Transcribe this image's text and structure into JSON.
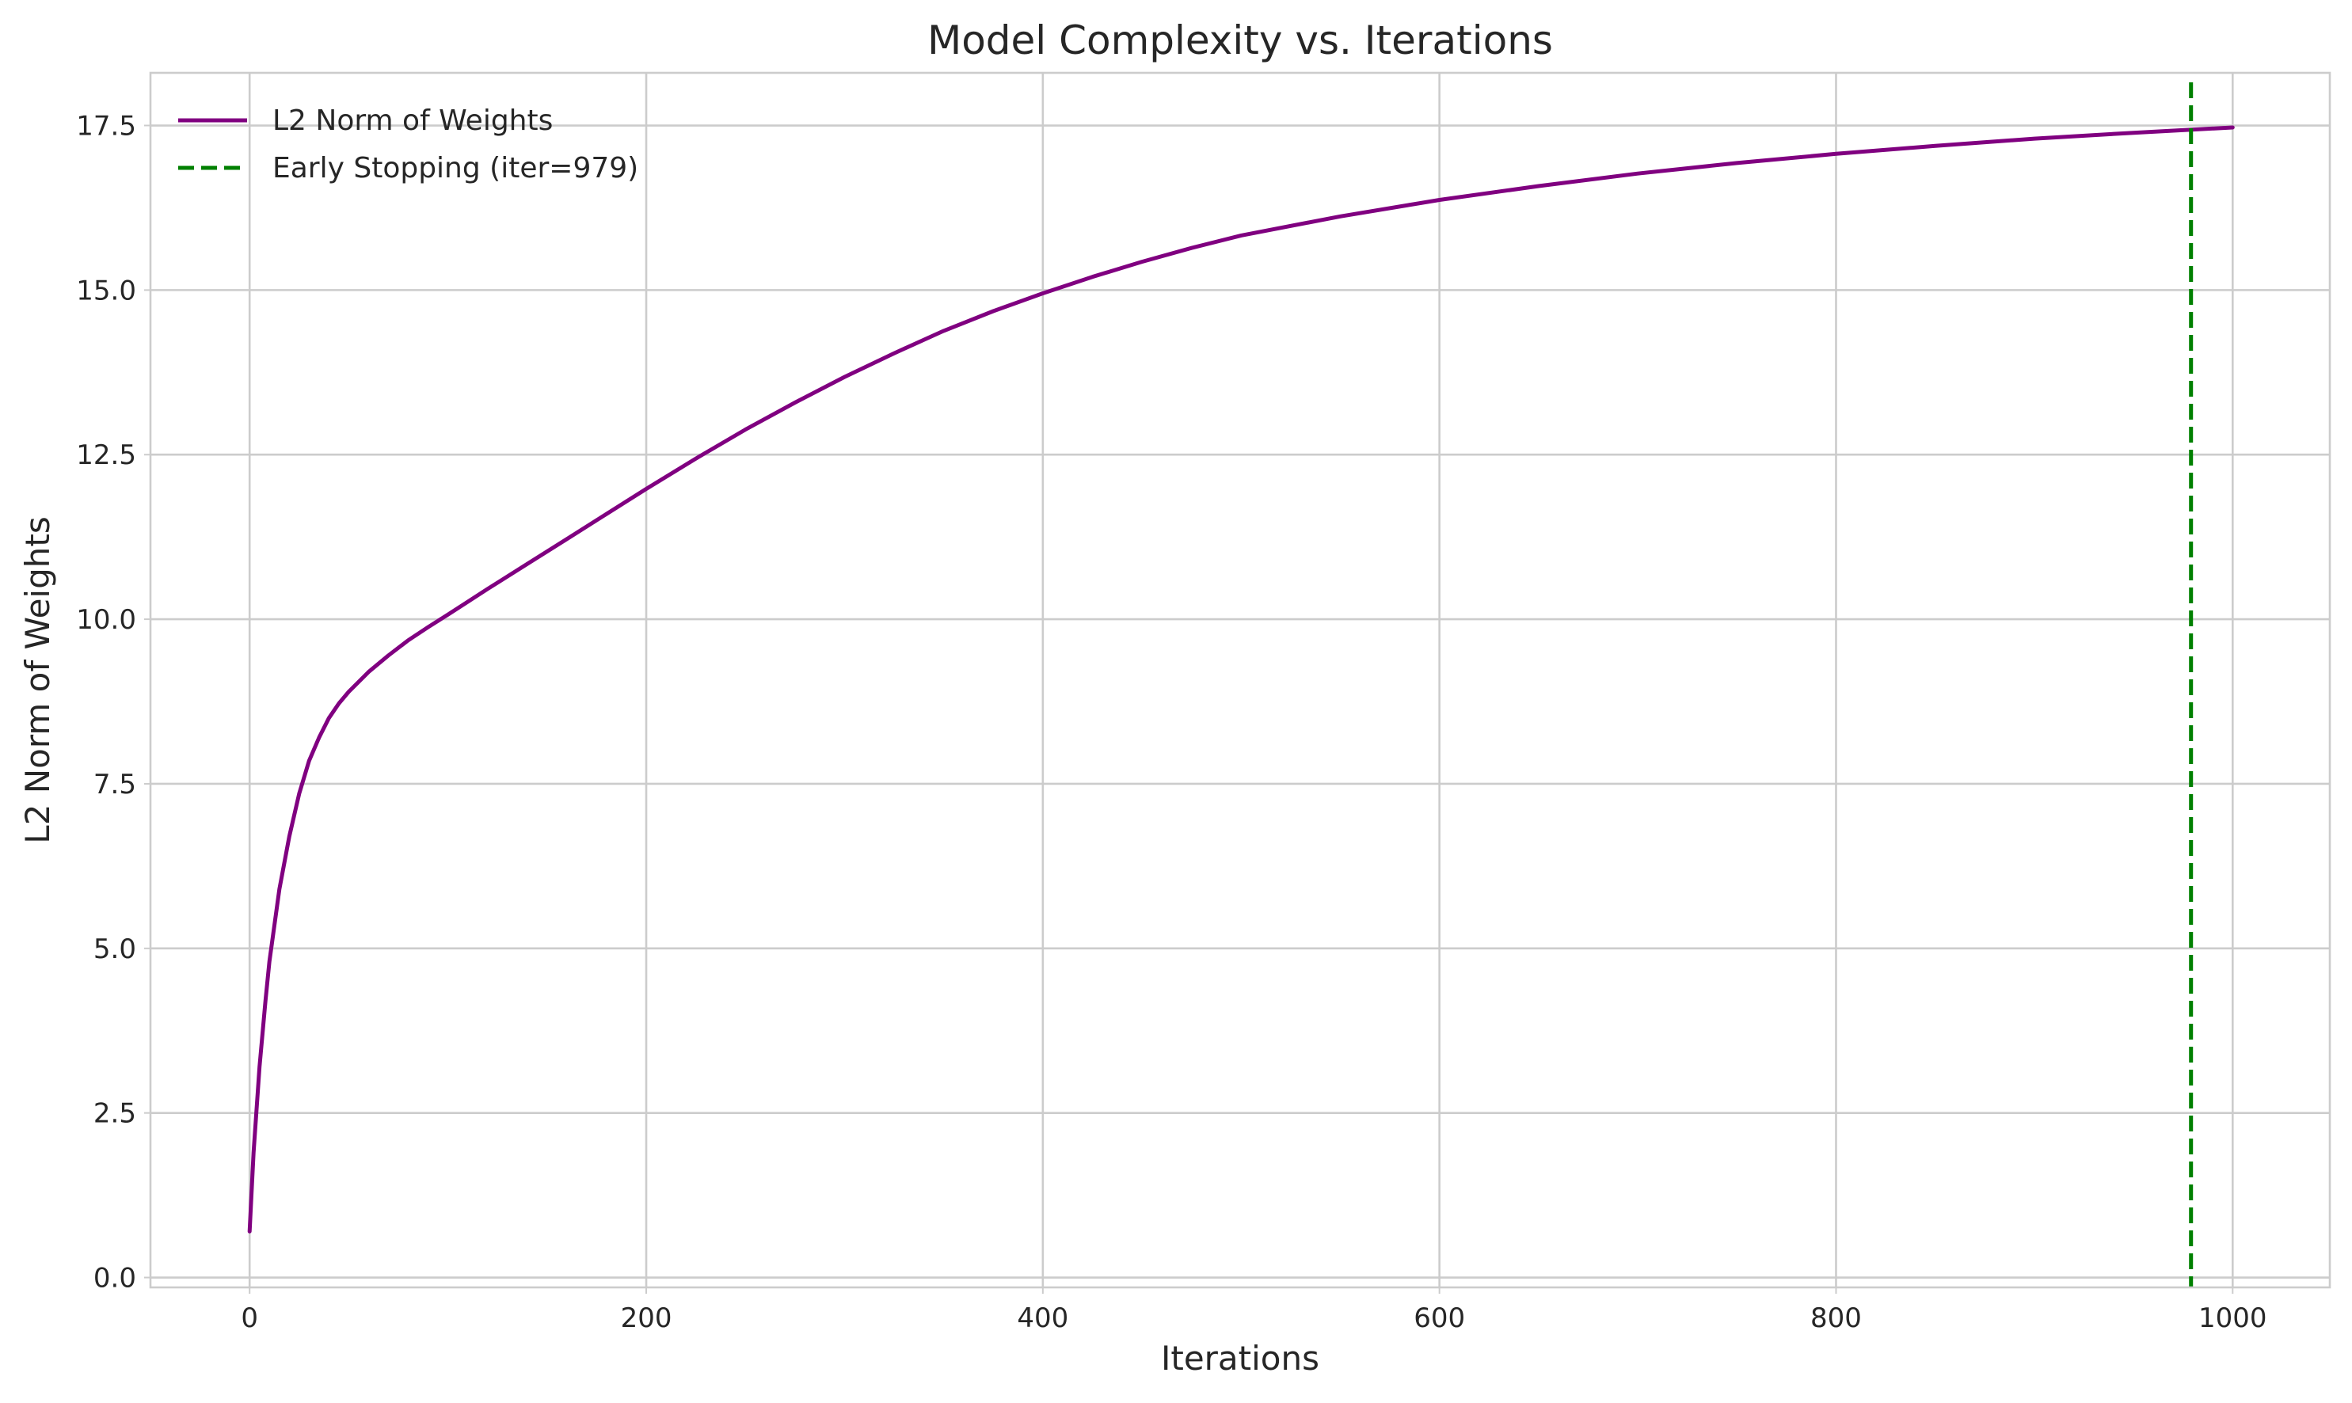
{
  "chart_data": {
    "type": "line",
    "title": "Model Complexity vs. Iterations",
    "xlabel": "Iterations",
    "ylabel": "L2 Norm of Weights",
    "xlim": [
      -50,
      1049
    ],
    "ylim": [
      -0.15,
      18.3
    ],
    "xticks": [
      0,
      200,
      400,
      600,
      800,
      1000
    ],
    "yticks": [
      0.0,
      2.5,
      5.0,
      7.5,
      10.0,
      12.5,
      15.0,
      17.5
    ],
    "xtick_labels": [
      "0",
      "200",
      "400",
      "600",
      "800",
      "1000"
    ],
    "ytick_labels": [
      "0.0",
      "2.5",
      "5.0",
      "7.5",
      "10.0",
      "12.5",
      "15.0",
      "17.5"
    ],
    "grid": true,
    "legend_position": "top-left",
    "series": [
      {
        "name": "L2 Norm of Weights",
        "color": "#800080",
        "style": "solid",
        "x": [
          0,
          2,
          5,
          8,
          10,
          15,
          20,
          25,
          30,
          35,
          40,
          45,
          50,
          60,
          70,
          80,
          90,
          100,
          120,
          140,
          160,
          180,
          200,
          225,
          250,
          275,
          300,
          325,
          350,
          375,
          400,
          425,
          450,
          475,
          500,
          550,
          600,
          650,
          700,
          750,
          800,
          850,
          900,
          950,
          1000
        ],
        "y": [
          0.7,
          1.9,
          3.2,
          4.2,
          4.8,
          5.9,
          6.7,
          7.35,
          7.85,
          8.2,
          8.5,
          8.72,
          8.9,
          9.2,
          9.45,
          9.68,
          9.88,
          10.07,
          10.46,
          10.84,
          11.22,
          11.6,
          11.98,
          12.44,
          12.88,
          13.29,
          13.68,
          14.04,
          14.38,
          14.68,
          14.95,
          15.2,
          15.43,
          15.64,
          15.83,
          16.12,
          16.37,
          16.58,
          16.77,
          16.93,
          17.07,
          17.19,
          17.3,
          17.39,
          17.47
        ]
      },
      {
        "name": "Early Stopping (iter=979)",
        "color": "#008000",
        "style": "dashed",
        "type": "vline",
        "x": 979
      }
    ]
  }
}
